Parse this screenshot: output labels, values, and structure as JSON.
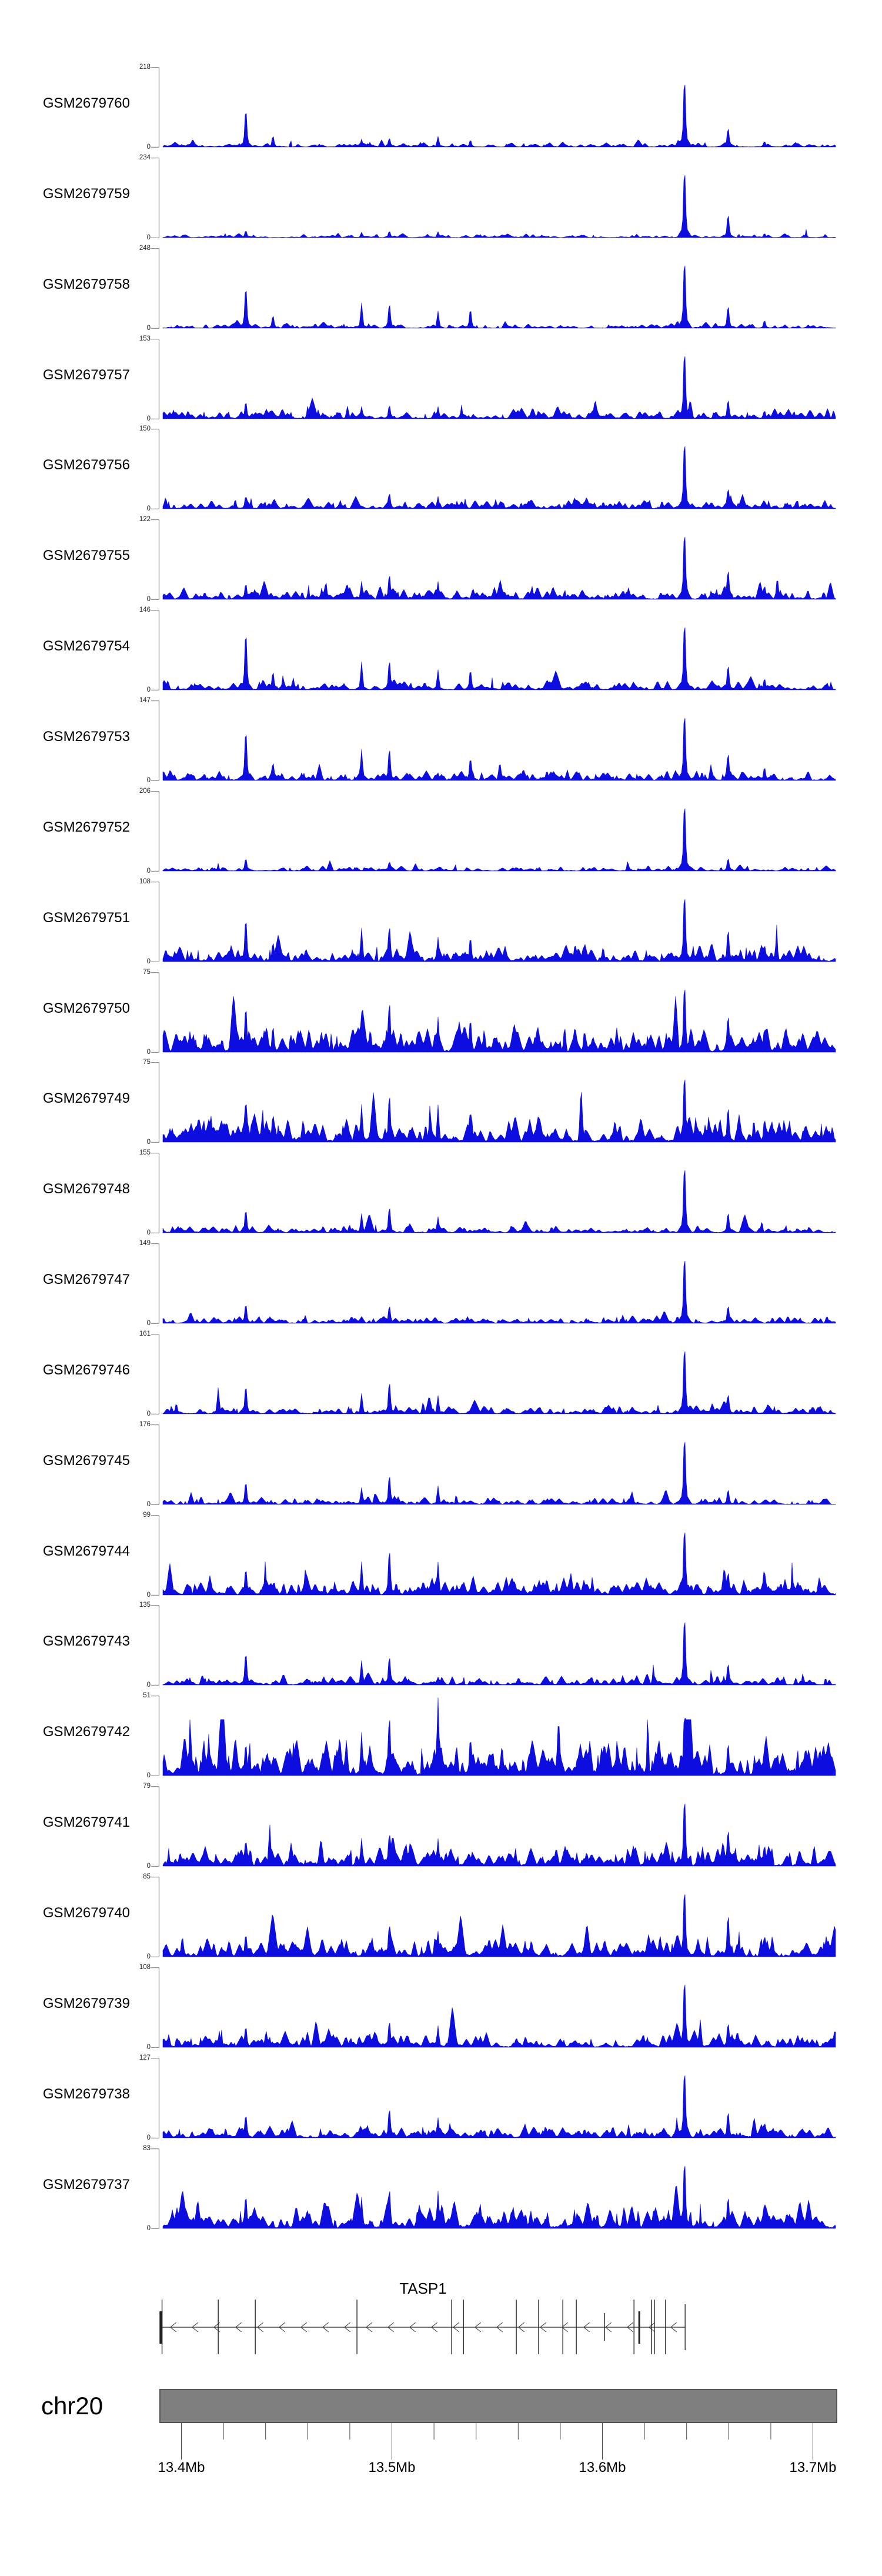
{
  "labels": {
    "zero": "0"
  },
  "colors": {
    "signal": "#0d0de0",
    "axis": "#8f8f8f",
    "axis_text": "#1f1f1f",
    "gene": "#222222",
    "chevron": "#3a3a3a",
    "ruler": "#4a4a4a",
    "ideogram_fill": "#7f7f7f",
    "ideogram_border": "#545454"
  },
  "chart_data": {
    "type": "area",
    "x_axis": {
      "chromosome": "chr20",
      "unit": "Mb",
      "xlim_mb": [
        13.391,
        13.711
      ],
      "major_ticks": [
        {
          "mb": 13.4,
          "label": "13.4Mb"
        },
        {
          "mb": 13.5,
          "label": "13.5Mb"
        },
        {
          "mb": 13.6,
          "label": "13.6Mb"
        },
        {
          "mb": 13.7,
          "label": "13.7Mb"
        }
      ],
      "minor_tick_mbs": [
        13.42,
        13.44,
        13.46,
        13.48,
        13.52,
        13.54,
        13.56,
        13.58,
        13.62,
        13.64,
        13.66,
        13.68
      ]
    },
    "tracks": [
      {
        "label": "GSM2679760",
        "ymax": 218,
        "noise": 7,
        "peaks": [
          [
            13.4306,
            120
          ],
          [
            13.4435,
            35
          ],
          [
            13.4856,
            22
          ],
          [
            13.4988,
            28
          ],
          [
            13.5219,
            30
          ],
          [
            13.5373,
            22
          ],
          [
            13.639,
            218
          ],
          [
            13.6597,
            60
          ],
          [
            13.677,
            18
          ]
        ]
      },
      {
        "label": "GSM2679759",
        "ymax": 234,
        "noise": 6,
        "peaks": [
          [
            13.4306,
            24
          ],
          [
            13.4856,
            16
          ],
          [
            13.4988,
            22
          ],
          [
            13.5219,
            18
          ],
          [
            13.639,
            234
          ],
          [
            13.6597,
            78
          ],
          [
            13.677,
            14
          ]
        ]
      },
      {
        "label": "GSM2679758",
        "ymax": 248,
        "noise": 8,
        "peaks": [
          [
            13.4306,
            150
          ],
          [
            13.4435,
            45
          ],
          [
            13.4856,
            80
          ],
          [
            13.4988,
            88
          ],
          [
            13.5219,
            55
          ],
          [
            13.5373,
            68
          ],
          [
            13.639,
            248
          ],
          [
            13.6597,
            80
          ],
          [
            13.677,
            28
          ]
        ]
      },
      {
        "label": "GSM2679757",
        "ymax": 153,
        "noise": 10,
        "peaks": [
          [
            13.4306,
            38
          ],
          [
            13.4856,
            24
          ],
          [
            13.4988,
            30
          ],
          [
            13.5219,
            24
          ],
          [
            13.639,
            153
          ],
          [
            13.6597,
            42
          ],
          [
            13.677,
            18
          ]
        ]
      },
      {
        "label": "GSM2679756",
        "ymax": 150,
        "noise": 10,
        "peaks": [
          [
            13.4306,
            28
          ],
          [
            13.4988,
            34
          ],
          [
            13.5219,
            24
          ],
          [
            13.639,
            150
          ],
          [
            13.6597,
            44
          ]
        ]
      },
      {
        "label": "GSM2679755",
        "ymax": 122,
        "noise": 10,
        "peaks": [
          [
            13.4306,
            28
          ],
          [
            13.4856,
            28
          ],
          [
            13.4988,
            44
          ],
          [
            13.5219,
            28
          ],
          [
            13.639,
            122
          ],
          [
            13.6597,
            52
          ],
          [
            13.677,
            24
          ]
        ]
      },
      {
        "label": "GSM2679754",
        "ymax": 146,
        "noise": 9,
        "peaks": [
          [
            13.4306,
            124
          ],
          [
            13.4435,
            38
          ],
          [
            13.4856,
            52
          ],
          [
            13.4988,
            62
          ],
          [
            13.5219,
            38
          ],
          [
            13.5373,
            42
          ],
          [
            13.639,
            146
          ],
          [
            13.6597,
            52
          ],
          [
            13.677,
            24
          ]
        ]
      },
      {
        "label": "GSM2679753",
        "ymax": 147,
        "noise": 10,
        "peaks": [
          [
            13.4306,
            108
          ],
          [
            13.4435,
            38
          ],
          [
            13.4856,
            58
          ],
          [
            13.4988,
            68
          ],
          [
            13.5373,
            48
          ],
          [
            13.639,
            147
          ],
          [
            13.6597,
            58
          ],
          [
            13.677,
            28
          ]
        ]
      },
      {
        "label": "GSM2679752",
        "ymax": 206,
        "noise": 7,
        "peaks": [
          [
            13.4306,
            38
          ],
          [
            13.4988,
            28
          ],
          [
            13.639,
            206
          ],
          [
            13.6597,
            38
          ]
        ]
      },
      {
        "label": "GSM2679751",
        "ymax": 108,
        "noise": 12,
        "peaks": [
          [
            13.4306,
            68
          ],
          [
            13.4435,
            30
          ],
          [
            13.4856,
            46
          ],
          [
            13.4988,
            56
          ],
          [
            13.5219,
            34
          ],
          [
            13.5373,
            38
          ],
          [
            13.639,
            108
          ],
          [
            13.6597,
            50
          ],
          [
            13.677,
            26
          ]
        ]
      },
      {
        "label": "GSM2679750",
        "ymax": 75,
        "noise": 13,
        "peaks": [
          [
            13.4306,
            50
          ],
          [
            13.4435,
            28
          ],
          [
            13.4856,
            38
          ],
          [
            13.4988,
            55
          ],
          [
            13.5219,
            34
          ],
          [
            13.5373,
            36
          ],
          [
            13.639,
            75
          ],
          [
            13.6597,
            40
          ],
          [
            13.677,
            26
          ]
        ]
      },
      {
        "label": "GSM2679749",
        "ymax": 75,
        "noise": 13,
        "peaks": [
          [
            13.4306,
            46
          ],
          [
            13.4435,
            30
          ],
          [
            13.4856,
            36
          ],
          [
            13.4988,
            52
          ],
          [
            13.5219,
            36
          ],
          [
            13.5373,
            34
          ],
          [
            13.639,
            75
          ],
          [
            13.6597,
            38
          ],
          [
            13.677,
            25
          ]
        ]
      },
      {
        "label": "GSM2679748",
        "ymax": 155,
        "noise": 8,
        "peaks": [
          [
            13.4306,
            52
          ],
          [
            13.4856,
            38
          ],
          [
            13.4988,
            58
          ],
          [
            13.5219,
            32
          ],
          [
            13.639,
            155
          ],
          [
            13.6597,
            45
          ]
        ]
      },
      {
        "label": "GSM2679747",
        "ymax": 149,
        "noise": 8,
        "peaks": [
          [
            13.4306,
            42
          ],
          [
            13.4988,
            38
          ],
          [
            13.639,
            149
          ],
          [
            13.6597,
            38
          ]
        ]
      },
      {
        "label": "GSM2679746",
        "ymax": 161,
        "noise": 9,
        "peaks": [
          [
            13.4175,
            55
          ],
          [
            13.4306,
            66
          ],
          [
            13.4856,
            42
          ],
          [
            13.4988,
            75
          ],
          [
            13.5219,
            38
          ],
          [
            13.639,
            161
          ],
          [
            13.6597,
            46
          ]
        ]
      },
      {
        "label": "GSM2679745",
        "ymax": 176,
        "noise": 9,
        "peaks": [
          [
            13.4306,
            58
          ],
          [
            13.4856,
            38
          ],
          [
            13.4988,
            75
          ],
          [
            13.5219,
            42
          ],
          [
            13.639,
            176
          ],
          [
            13.6597,
            38
          ]
        ]
      },
      {
        "label": "GSM2679744",
        "ymax": 99,
        "noise": 12,
        "peaks": [
          [
            13.4306,
            38
          ],
          [
            13.459,
            38
          ],
          [
            13.4856,
            42
          ],
          [
            13.4988,
            65
          ],
          [
            13.5219,
            42
          ],
          [
            13.639,
            99
          ],
          [
            13.6597,
            33
          ],
          [
            13.677,
            33
          ]
        ]
      },
      {
        "label": "GSM2679743",
        "ymax": 135,
        "noise": 9,
        "peaks": [
          [
            13.4306,
            64
          ],
          [
            13.4856,
            42
          ],
          [
            13.4988,
            56
          ],
          [
            13.639,
            135
          ],
          [
            13.6597,
            42
          ]
        ]
      },
      {
        "label": "GSM2679742",
        "ymax": 51,
        "noise": 13,
        "peaks": [
          [
            13.4306,
            24
          ],
          [
            13.4856,
            28
          ],
          [
            13.4988,
            44
          ],
          [
            13.5219,
            51
          ],
          [
            13.5373,
            28
          ],
          [
            13.639,
            47
          ],
          [
            13.6597,
            24
          ],
          [
            13.677,
            19
          ]
        ]
      },
      {
        "label": "GSM2679741",
        "ymax": 79,
        "noise": 12,
        "peaks": [
          [
            13.4306,
            30
          ],
          [
            13.4856,
            28
          ],
          [
            13.4988,
            38
          ],
          [
            13.5219,
            28
          ],
          [
            13.639,
            79
          ],
          [
            13.6597,
            42
          ],
          [
            13.677,
            24
          ]
        ]
      },
      {
        "label": "GSM2679740",
        "ymax": 85,
        "noise": 12,
        "peaks": [
          [
            13.4306,
            28
          ],
          [
            13.4988,
            40
          ],
          [
            13.5219,
            28
          ],
          [
            13.639,
            85
          ],
          [
            13.6597,
            52
          ],
          [
            13.677,
            26
          ]
        ]
      },
      {
        "label": "GSM2679739",
        "ymax": 108,
        "noise": 11,
        "peaks": [
          [
            13.4306,
            33
          ],
          [
            13.4988,
            41
          ],
          [
            13.5219,
            30
          ],
          [
            13.639,
            108
          ],
          [
            13.6597,
            38
          ]
        ]
      },
      {
        "label": "GSM2679738",
        "ymax": 127,
        "noise": 11,
        "peaks": [
          [
            13.4306,
            43
          ],
          [
            13.4988,
            54
          ],
          [
            13.5219,
            33
          ],
          [
            13.639,
            127
          ],
          [
            13.6597,
            48
          ],
          [
            13.677,
            28
          ]
        ]
      },
      {
        "label": "GSM2679737",
        "ymax": 83,
        "noise": 14,
        "peaks": [
          [
            13.4306,
            40
          ],
          [
            13.4856,
            33
          ],
          [
            13.4988,
            48
          ],
          [
            13.5219,
            40
          ],
          [
            13.639,
            83
          ],
          [
            13.6597,
            38
          ],
          [
            13.677,
            31
          ]
        ]
      }
    ],
    "gene": {
      "name": "TASP1",
      "strand": "-",
      "start_mb": 13.3903,
      "end_mb": 13.6393,
      "exons": [
        {
          "mb": 13.3903,
          "kind": "thickbox"
        },
        {
          "mb": 13.3908,
          "kind": "tall"
        },
        {
          "mb": 13.4175,
          "kind": "tall"
        },
        {
          "mb": 13.4351,
          "kind": "tall"
        },
        {
          "mb": 13.4834,
          "kind": "tall"
        },
        {
          "mb": 13.5284,
          "kind": "tall"
        },
        {
          "mb": 13.534,
          "kind": "tall"
        },
        {
          "mb": 13.5591,
          "kind": "tall"
        },
        {
          "mb": 13.5697,
          "kind": "tall"
        },
        {
          "mb": 13.5812,
          "kind": "tall"
        },
        {
          "mb": 13.5876,
          "kind": "tall"
        },
        {
          "mb": 13.601,
          "kind": "short"
        },
        {
          "mb": 13.615,
          "kind": "tall"
        },
        {
          "mb": 13.6175,
          "kind": "thickshort"
        },
        {
          "mb": 13.6233,
          "kind": "tall"
        },
        {
          "mb": 13.6247,
          "kind": "tall"
        },
        {
          "mb": 13.63,
          "kind": "tall"
        },
        {
          "mb": 13.6393,
          "kind": "end"
        }
      ]
    },
    "ideogram": {
      "label": "chr20"
    }
  }
}
